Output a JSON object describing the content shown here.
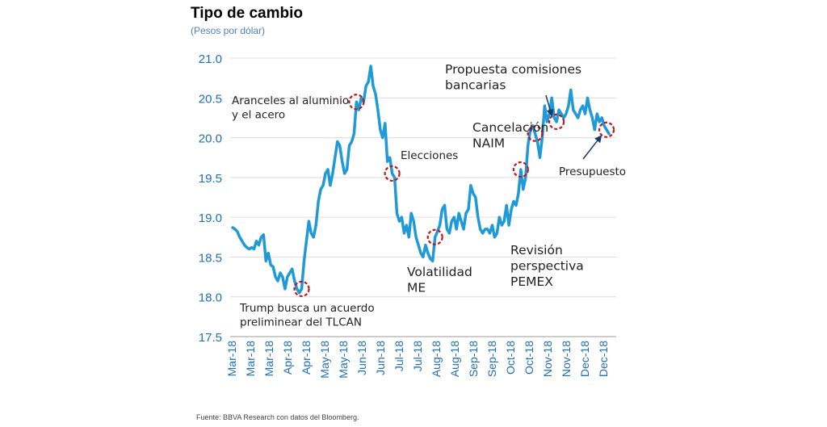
{
  "title": "Tipo de cambio",
  "subtitle": "(Pesos por dólar)",
  "source": "Fuente: BBVA Research con datos del Bloomberg.",
  "chart_data": {
    "type": "line",
    "title": "Tipo de cambio",
    "subtitle": "(Pesos por dólar)",
    "xlabel": "",
    "ylabel": "",
    "ylim": [
      17.5,
      21.0
    ],
    "yticks": [
      "17.5",
      "18.0",
      "18.5",
      "19.0",
      "19.5",
      "20.0",
      "20.5",
      "21.0"
    ],
    "xticks": [
      "Mar-18",
      "Mar-18",
      "Mar-18",
      "Apr-18",
      "Apr-18",
      "May-18",
      "May-18",
      "Jun-18",
      "Jun-18",
      "Jul-18",
      "Jul-18",
      "Aug-18",
      "Aug-18",
      "Sep-18",
      "Sep-18",
      "Oct-18",
      "Oct-18",
      "Nov-18",
      "Nov-18",
      "Dec-18",
      "Dec-18"
    ],
    "grid": "horizontal",
    "line_color": "#1f9ad6",
    "marker_color": "#c0161c",
    "series": [
      {
        "values": [
          18.87,
          18.85,
          18.82,
          18.75,
          18.7,
          18.65,
          18.62,
          18.6,
          18.62,
          18.6,
          18.7,
          18.65,
          18.75,
          18.78,
          18.45,
          18.55,
          18.4,
          18.38,
          18.25,
          18.2,
          18.3,
          18.25,
          18.1,
          18.25,
          18.3,
          18.35,
          18.2,
          18.1,
          18.05,
          18.1,
          18.45,
          18.7,
          18.95,
          18.8,
          18.75,
          18.9,
          19.2,
          19.35,
          19.4,
          19.55,
          19.6,
          19.4,
          19.55,
          19.75,
          19.95,
          19.9,
          19.7,
          19.55,
          19.6,
          19.9,
          19.95,
          20.05,
          20.45,
          20.35,
          20.5,
          20.45,
          20.65,
          20.7,
          20.9,
          20.65,
          20.55,
          20.35,
          20.1,
          20.0,
          20.18,
          19.7,
          19.75,
          19.55,
          19.5,
          19.05,
          18.95,
          19.0,
          18.8,
          18.9,
          18.75,
          19.05,
          18.95,
          18.75,
          18.65,
          18.55,
          18.5,
          18.65,
          18.55,
          18.48,
          18.45,
          18.75,
          18.82,
          18.9,
          19.1,
          19.15,
          18.85,
          18.8,
          18.95,
          19.0,
          18.85,
          19.05,
          18.95,
          18.85,
          19.05,
          19.1,
          19.4,
          19.3,
          19.25,
          19.0,
          18.85,
          18.8,
          18.85,
          18.85,
          18.8,
          18.9,
          18.75,
          18.8,
          19.0,
          18.9,
          18.95,
          19.15,
          18.9,
          19.1,
          19.2,
          19.15,
          19.3,
          19.6,
          19.35,
          19.5,
          19.9,
          20.1,
          20.15,
          20.05,
          19.95,
          19.75,
          20.0,
          20.4,
          20.2,
          20.3,
          20.5,
          20.25,
          20.2,
          20.35,
          20.3,
          20.25,
          20.3,
          20.4,
          20.6,
          20.35,
          20.3,
          20.25,
          20.35,
          20.4,
          20.3,
          20.5,
          20.35,
          20.25,
          20.1,
          20.3,
          20.2,
          20.25,
          20.15,
          20.1,
          20.05
        ]
      }
    ],
    "markers": [
      {
        "index": 29,
        "label_key": "trump"
      },
      {
        "index": 52,
        "label_key": "aranceles"
      },
      {
        "index": 67,
        "label_key": "elecciones"
      },
      {
        "index": 85,
        "label_key": "volatilidad"
      },
      {
        "index": 121,
        "label_key": "revision"
      },
      {
        "index": 127,
        "label_key": "cancelacion"
      },
      {
        "index": 136,
        "label_key": "propuesta"
      },
      {
        "index": 157,
        "label_key": "presupuesto"
      }
    ],
    "annotations": {
      "trump": [
        "Trump busca un acuerdo",
        "preliminear del TLCAN"
      ],
      "aranceles": [
        "Aranceles al aluminio",
        "y el acero"
      ],
      "elecciones": [
        "Elecciones"
      ],
      "volatilidad": [
        "Volatilidad",
        "ME"
      ],
      "revision": [
        "Revisión",
        "perspectiva",
        "PEMEX"
      ],
      "cancelacion": [
        "Cancelación",
        "NAIM"
      ],
      "propuesta": [
        "Propuesta comisiones",
        "bancarias"
      ],
      "presupuesto": [
        "Presupuesto"
      ]
    }
  }
}
